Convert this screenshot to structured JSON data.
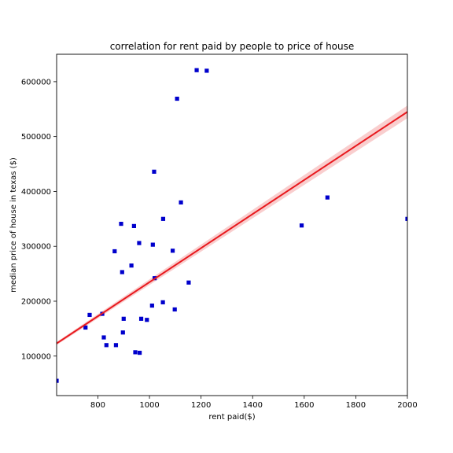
{
  "chart_data": {
    "type": "scatter",
    "title": "correlation for rent paid by people to price of house",
    "xlabel": "rent paid($)",
    "ylabel": "median price of house in texas ($)",
    "xlim": [
      640,
      2000
    ],
    "ylim": [
      28000,
      650000
    ],
    "xticks": [
      800,
      1000,
      1200,
      1400,
      1600,
      1800,
      2000
    ],
    "yticks": [
      100000,
      200000,
      300000,
      400000,
      500000,
      600000
    ],
    "xtick_labels": [
      "800",
      "1000",
      "1200",
      "1400",
      "1600",
      "1800",
      "2000"
    ],
    "ytick_labels": [
      "100000",
      "200000",
      "300000",
      "400000",
      "500000",
      "600000"
    ],
    "grid": false,
    "legend": "none",
    "points": [
      {
        "x": 640,
        "y": 55000
      },
      {
        "x": 752,
        "y": 152000
      },
      {
        "x": 768,
        "y": 175000
      },
      {
        "x": 817,
        "y": 177000
      },
      {
        "x": 823,
        "y": 134000
      },
      {
        "x": 833,
        "y": 120000
      },
      {
        "x": 865,
        "y": 291000
      },
      {
        "x": 870,
        "y": 120000
      },
      {
        "x": 890,
        "y": 341000
      },
      {
        "x": 894,
        "y": 253000
      },
      {
        "x": 897,
        "y": 143000
      },
      {
        "x": 900,
        "y": 168000
      },
      {
        "x": 930,
        "y": 265000
      },
      {
        "x": 940,
        "y": 337000
      },
      {
        "x": 945,
        "y": 107000
      },
      {
        "x": 960,
        "y": 306000
      },
      {
        "x": 962,
        "y": 106000
      },
      {
        "x": 968,
        "y": 168000
      },
      {
        "x": 990,
        "y": 166000
      },
      {
        "x": 1010,
        "y": 192000
      },
      {
        "x": 1013,
        "y": 303000
      },
      {
        "x": 1018,
        "y": 436000
      },
      {
        "x": 1020,
        "y": 242000
      },
      {
        "x": 1052,
        "y": 198000
      },
      {
        "x": 1053,
        "y": 350000
      },
      {
        "x": 1090,
        "y": 292000
      },
      {
        "x": 1098,
        "y": 185000
      },
      {
        "x": 1107,
        "y": 569000
      },
      {
        "x": 1122,
        "y": 380000
      },
      {
        "x": 1152,
        "y": 234000
      },
      {
        "x": 1183,
        "y": 621000
      },
      {
        "x": 1222,
        "y": 620000
      },
      {
        "x": 1590,
        "y": 338000
      },
      {
        "x": 1690,
        "y": 389000
      },
      {
        "x": 2000,
        "y": 350000
      }
    ],
    "regression": {
      "x": [
        640,
        2000
      ],
      "y": [
        123000,
        545000
      ]
    },
    "colors": {
      "points": "#0000cc",
      "regression_line": "#e8191e",
      "confidence_band": "#f4a6a6"
    }
  }
}
